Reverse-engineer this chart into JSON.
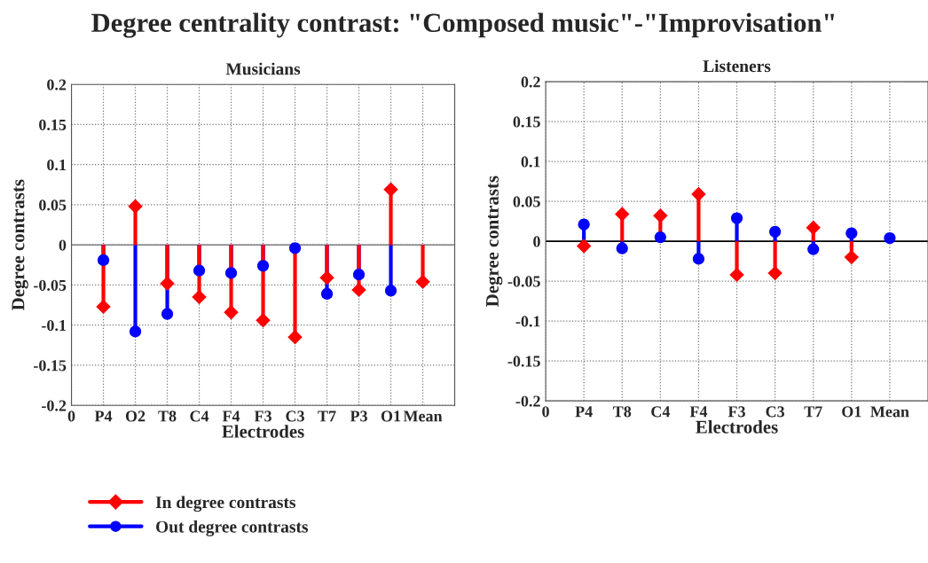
{
  "chart_data": [
    {
      "type": "lollipop",
      "title": "Musicians",
      "xlabel": "Electrodes",
      "ylabel": "Degree contrasts",
      "annotations": [
        "Degree centrality contrast: \"Composed music\"-\"Improvisation\""
      ],
      "categories": [
        "0",
        "P4",
        "O2",
        "T8",
        "C4",
        "F4",
        "F3",
        "C3",
        "T7",
        "P3",
        "O1",
        "Mean"
      ],
      "ylim": [
        -0.2,
        0.2
      ],
      "yticks": [
        -0.2,
        -0.15,
        -0.1,
        -0.05,
        0,
        0.05,
        0.1,
        0.15,
        0.2
      ],
      "grid": true,
      "legend": "bottom left",
      "ref_lines": [
        {
          "axis": "y",
          "value": 0,
          "color": "#808080"
        }
      ],
      "series": [
        {
          "name": "In degree contrasts",
          "color": "#ff0000",
          "marker": "diamond",
          "values": [
            null,
            -0.077,
            0.048,
            -0.048,
            -0.065,
            -0.084,
            -0.094,
            -0.115,
            -0.041,
            -0.056,
            0.069,
            -0.046
          ]
        },
        {
          "name": "Out degree contrasts",
          "color": "#0000ff",
          "marker": "circle",
          "values": [
            null,
            -0.019,
            -0.108,
            -0.086,
            -0.032,
            -0.035,
            -0.026,
            -0.004,
            -0.061,
            -0.037,
            -0.057,
            null
          ]
        }
      ]
    },
    {
      "type": "lollipop",
      "title": "Listeners",
      "xlabel": "Electrodes",
      "ylabel": "Degree contrasts",
      "categories": [
        "0",
        "P4",
        "T8",
        "C4",
        "F4",
        "F3",
        "C3",
        "T7",
        "O1",
        "Mean"
      ],
      "ylim": [
        -0.2,
        0.2
      ],
      "yticks": [
        -0.2,
        -0.15,
        -0.1,
        -0.05,
        0,
        0.05,
        0.1,
        0.15,
        0.2
      ],
      "grid": true,
      "ref_lines": [
        {
          "axis": "y",
          "value": 0,
          "color": "#000000"
        }
      ],
      "series": [
        {
          "color": "#ff0000",
          "marker": "diamond",
          "values": [
            null,
            -0.006,
            0.034,
            0.032,
            0.059,
            -0.042,
            -0.04,
            0.017,
            -0.02,
            null
          ]
        },
        {
          "color": "#0000ff",
          "marker": "circle",
          "values": [
            null,
            0.021,
            -0.009,
            0.005,
            -0.022,
            0.029,
            0.012,
            -0.01,
            0.01,
            0.004
          ]
        }
      ]
    }
  ]
}
